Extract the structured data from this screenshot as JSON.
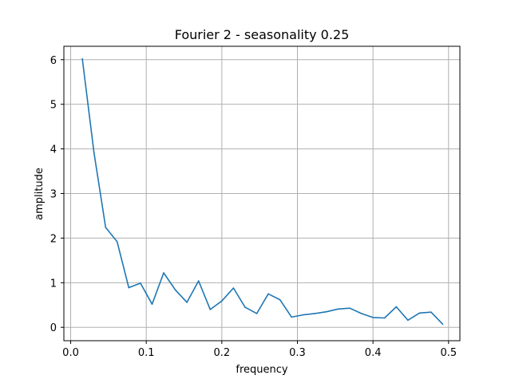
{
  "chart_data": {
    "type": "line",
    "title": "Fourier 2 - seasonality 0.25",
    "xlabel": "frequency",
    "ylabel": "amplitude",
    "xlim": [
      -0.009,
      0.515
    ],
    "ylim": [
      -0.3,
      6.3
    ],
    "xticks": [
      0.0,
      0.1,
      0.2,
      0.3,
      0.4,
      0.5
    ],
    "xtick_labels": [
      "0.0",
      "0.1",
      "0.2",
      "0.3",
      "0.4",
      "0.5"
    ],
    "yticks": [
      0,
      1,
      2,
      3,
      4,
      5,
      6
    ],
    "ytick_labels": [
      "0",
      "1",
      "2",
      "3",
      "4",
      "5",
      "6"
    ],
    "grid": true,
    "series": [
      {
        "color": "#1f77b4",
        "x": [
          0.0154,
          0.0308,
          0.0462,
          0.0615,
          0.0769,
          0.0923,
          0.1077,
          0.1231,
          0.1385,
          0.1538,
          0.1692,
          0.1846,
          0.2,
          0.2154,
          0.2308,
          0.2462,
          0.2615,
          0.2769,
          0.2923,
          0.3077,
          0.3231,
          0.3385,
          0.3538,
          0.3692,
          0.3846,
          0.4,
          0.4154,
          0.4308,
          0.4462,
          0.4615,
          0.4769,
          0.4923
        ],
        "y": [
          6.02,
          3.92,
          2.24,
          1.92,
          0.89,
          0.99,
          0.52,
          1.22,
          0.84,
          0.56,
          1.04,
          0.4,
          0.59,
          0.88,
          0.45,
          0.31,
          0.75,
          0.62,
          0.23,
          0.28,
          0.31,
          0.35,
          0.41,
          0.43,
          0.31,
          0.22,
          0.21,
          0.46,
          0.16,
          0.32,
          0.34,
          0.07
        ]
      }
    ]
  }
}
